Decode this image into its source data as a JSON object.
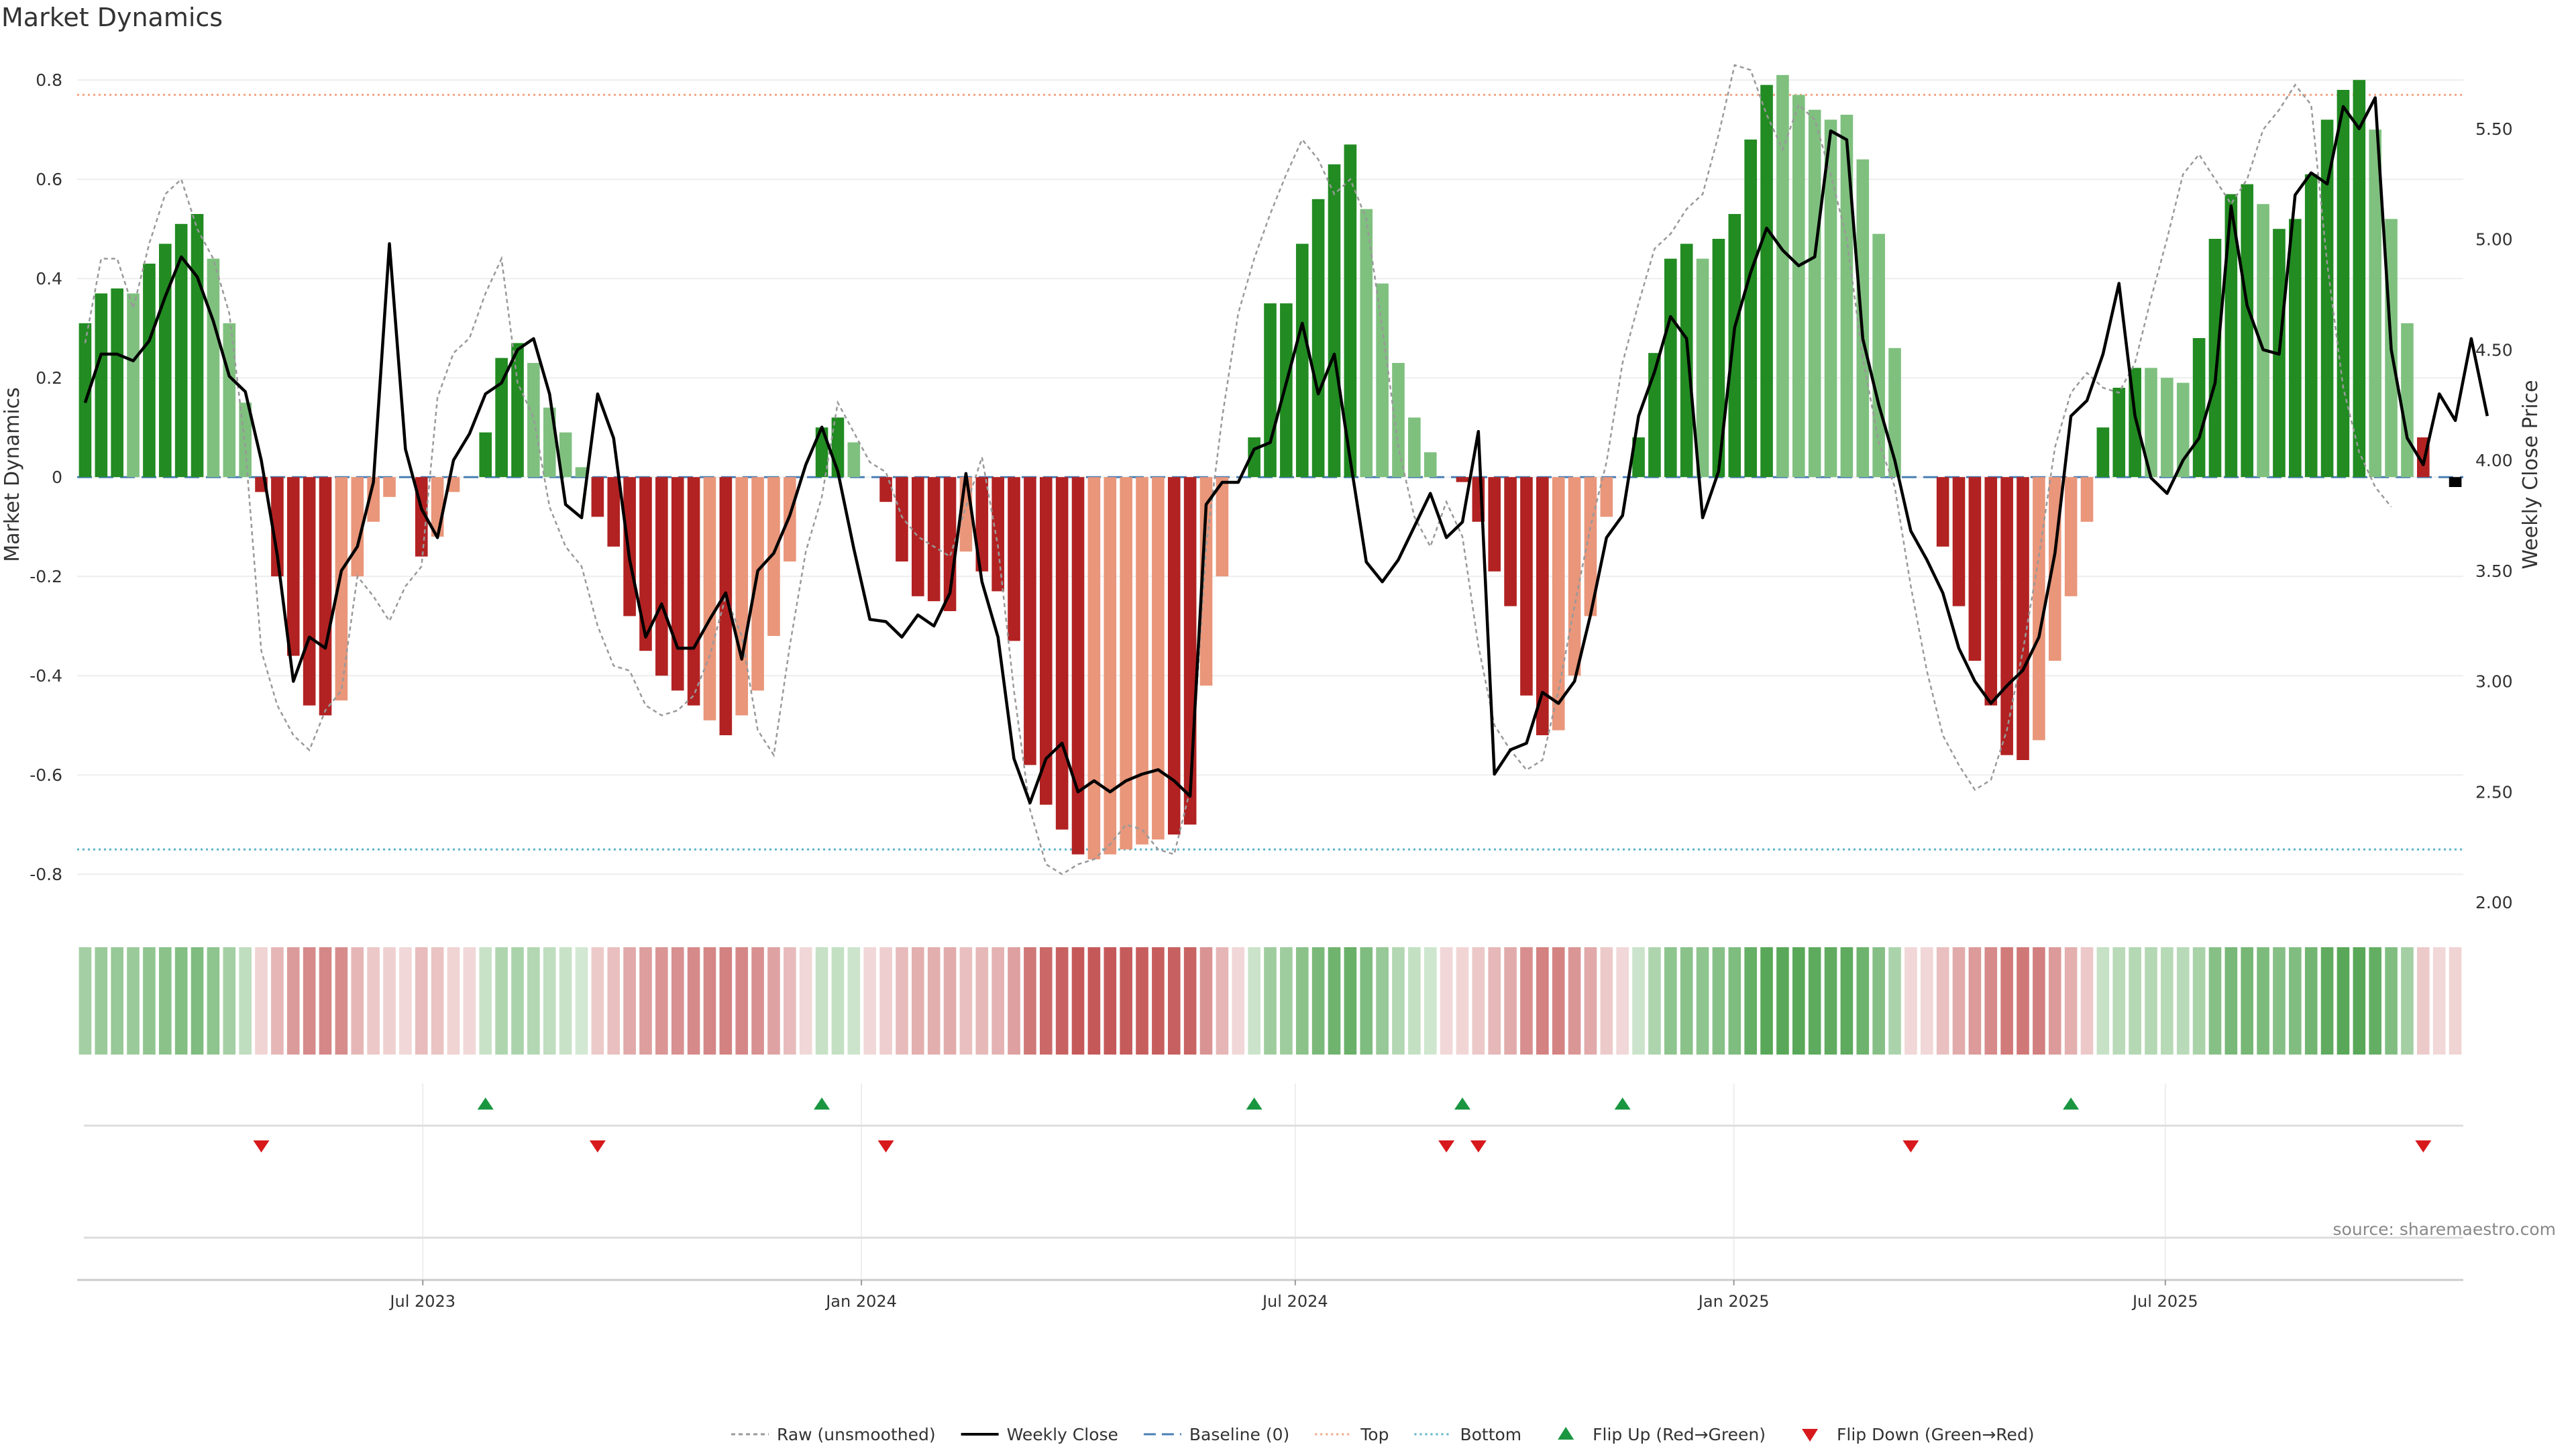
{
  "chart_data": {
    "type": "bar",
    "title": "Market Dynamics",
    "source": "source: sharemaestro.com",
    "ylabel": "Market Dynamics",
    "ylabel_right": "Weekly Close Price",
    "ylim": [
      -0.87,
      0.88
    ],
    "ylim_right": [
      1.97,
      5.9
    ],
    "yticks": [
      0.8,
      0.6,
      0.4,
      0.2,
      0,
      -0.2,
      -0.4,
      -0.6,
      -0.8
    ],
    "ytick_labels": [
      "0.8",
      "0.6",
      "0.4",
      "0.2",
      "0",
      "-0.2",
      "-0.4",
      "-0.6",
      "-0.8"
    ],
    "yticks_right": [
      5.5,
      5.0,
      4.5,
      4.0,
      3.5,
      3.0,
      2.5,
      2.0
    ],
    "ytick_labels_right": [
      "5.50",
      "5.00",
      "4.50",
      "4.00",
      "3.50",
      "3.00",
      "2.50",
      "2.00"
    ],
    "x_start": "2023-02-06",
    "x_end": "2025-11-03",
    "xticks": [
      "2023-07-01",
      "2024-01-01",
      "2024-07-01",
      "2025-01-01",
      "2025-07-01"
    ],
    "xtick_labels": [
      "Jul 2023",
      "Jan 2024",
      "Jul 2024",
      "Jan 2025",
      "Jul 2025"
    ],
    "thresholds": {
      "top": 0.77,
      "bottom": -0.75,
      "baseline": 0
    },
    "grid": true,
    "legend_position": "bottom-center",
    "colors": {
      "strong_green": "#228b22",
      "weak_green": "#7fc07f",
      "strong_red": "#b22222",
      "weak_red": "#e9967a",
      "close_line": "#000000",
      "raw_line": "#999999",
      "baseline": "#4a7fb5",
      "top": "#f4a582",
      "bottom": "#5ab4c8",
      "flip_up": "#1a9641",
      "flip_down": "#d7191c"
    },
    "series": [
      {
        "name": "Market Dynamics",
        "values": [
          0.31,
          0.37,
          0.38,
          0.37,
          0.43,
          0.47,
          0.51,
          0.53,
          0.44,
          0.31,
          0.15,
          -0.03,
          -0.2,
          -0.36,
          -0.46,
          -0.48,
          -0.45,
          -0.2,
          -0.09,
          -0.04,
          0,
          -0.16,
          -0.12,
          -0.03,
          0,
          0.09,
          0.24,
          0.27,
          0.23,
          0.14,
          0.09,
          0.02,
          -0.08,
          -0.14,
          -0.28,
          -0.35,
          -0.4,
          -0.43,
          -0.46,
          -0.49,
          -0.52,
          -0.48,
          -0.43,
          -0.32,
          -0.17,
          0,
          0.1,
          0.12,
          0.07,
          0,
          -0.05,
          -0.17,
          -0.24,
          -0.25,
          -0.27,
          -0.15,
          -0.19,
          -0.23,
          -0.33,
          -0.58,
          -0.66,
          -0.71,
          -0.76,
          -0.77,
          -0.76,
          -0.75,
          -0.74,
          -0.73,
          -0.72,
          -0.7,
          -0.42,
          -0.2,
          0,
          0.08,
          0.35,
          0.35,
          0.47,
          0.56,
          0.63,
          0.67,
          0.54,
          0.39,
          0.23,
          0.12,
          0.05,
          0,
          -0.01,
          -0.09,
          -0.19,
          -0.26,
          -0.44,
          -0.52,
          -0.51,
          -0.4,
          -0.28,
          -0.08,
          0,
          0.08,
          0.25,
          0.44,
          0.47,
          0.44,
          0.48,
          0.53,
          0.68,
          0.79,
          0.81,
          0.77,
          0.74,
          0.72,
          0.73,
          0.64,
          0.49,
          0.26,
          0,
          0,
          -0.14,
          -0.26,
          -0.37,
          -0.46,
          -0.56,
          -0.57,
          -0.53,
          -0.37,
          -0.24,
          -0.09,
          0.1,
          0.18,
          0.22,
          0.22,
          0.2,
          0.19,
          0.28,
          0.48,
          0.57,
          0.59,
          0.55,
          0.5,
          0.52,
          0.61,
          0.72,
          0.78,
          0.8,
          0.7,
          0.52,
          0.31,
          0.08,
          0,
          -0.02
        ],
        "kinds": [
          "G",
          "G",
          "G",
          "W",
          "G",
          "G",
          "G",
          "G",
          "W",
          "W",
          "W",
          "R",
          "R",
          "R",
          "R",
          "R",
          "L",
          "L",
          "L",
          "L",
          "N",
          "R",
          "L",
          "L",
          "N",
          "G",
          "G",
          "G",
          "W",
          "W",
          "W",
          "W",
          "R",
          "R",
          "R",
          "R",
          "R",
          "R",
          "R",
          "L",
          "R",
          "L",
          "L",
          "L",
          "L",
          "N",
          "G",
          "G",
          "W",
          "N",
          "R",
          "R",
          "R",
          "R",
          "R",
          "L",
          "R",
          "R",
          "R",
          "R",
          "R",
          "R",
          "R",
          "L",
          "L",
          "L",
          "L",
          "L",
          "R",
          "R",
          "L",
          "L",
          "N",
          "G",
          "G",
          "G",
          "G",
          "G",
          "G",
          "G",
          "W",
          "W",
          "W",
          "W",
          "W",
          "N",
          "R",
          "R",
          "R",
          "R",
          "R",
          "R",
          "L",
          "L",
          "L",
          "L",
          "N",
          "G",
          "G",
          "G",
          "G",
          "W",
          "G",
          "G",
          "G",
          "G",
          "W",
          "W",
          "W",
          "W",
          "W",
          "W",
          "W",
          "W",
          "N",
          "N",
          "R",
          "R",
          "R",
          "R",
          "R",
          "R",
          "L",
          "L",
          "L",
          "L",
          "G",
          "G",
          "G",
          "W",
          "W",
          "W",
          "G",
          "G",
          "G",
          "G",
          "W",
          "G",
          "G",
          "G",
          "G",
          "G",
          "G",
          "W",
          "W",
          "W",
          "N",
          "R"
        ]
      },
      {
        "name": "Raw (unsmoothed)",
        "values": [
          0.27,
          0.44,
          0.44,
          0.34,
          0.47,
          0.57,
          0.6,
          0.5,
          0.44,
          0.33,
          0.06,
          -0.35,
          -0.46,
          -0.52,
          -0.55,
          -0.47,
          -0.43,
          -0.2,
          -0.24,
          -0.29,
          -0.22,
          -0.18,
          0.16,
          0.25,
          0.28,
          0.37,
          0.44,
          0.19,
          0.12,
          -0.06,
          -0.14,
          -0.18,
          -0.3,
          -0.38,
          -0.39,
          -0.46,
          -0.48,
          -0.47,
          -0.44,
          -0.36,
          -0.24,
          -0.32,
          -0.51,
          -0.56,
          -0.34,
          -0.15,
          -0.04,
          0.15,
          0.09,
          0.03,
          0.01,
          -0.08,
          -0.12,
          -0.14,
          -0.16,
          -0.06,
          0.04,
          -0.14,
          -0.43,
          -0.67,
          -0.78,
          -0.8,
          -0.78,
          -0.77,
          -0.74,
          -0.7,
          -0.71,
          -0.75,
          -0.76,
          -0.63,
          -0.14,
          0.12,
          0.33,
          0.44,
          0.53,
          0.61,
          0.68,
          0.64,
          0.57,
          0.6,
          0.52,
          0.3,
          0.06,
          -0.08,
          -0.14,
          -0.05,
          -0.12,
          -0.34,
          -0.5,
          -0.55,
          -0.59,
          -0.57,
          -0.43,
          -0.26,
          -0.1,
          0.03,
          0.23,
          0.35,
          0.46,
          0.49,
          0.54,
          0.57,
          0.69,
          0.83,
          0.82,
          0.73,
          0.66,
          0.75,
          0.72,
          0.61,
          0.48,
          0.24,
          0.07,
          -0.02,
          -0.22,
          -0.39,
          -0.52,
          -0.58,
          -0.63,
          -0.61,
          -0.51,
          -0.35,
          -0.16,
          0.06,
          0.17,
          0.21,
          0.18,
          0.17,
          0.23,
          0.36,
          0.48,
          0.61,
          0.65,
          0.6,
          0.55,
          0.6,
          0.7,
          0.74,
          0.79,
          0.75,
          0.43,
          0.18,
          0.05,
          -0.02,
          -0.06
        ],
        "line_style": "dotted"
      },
      {
        "name": "Weekly Close",
        "values": [
          4.26,
          4.48,
          4.48,
          4.45,
          4.54,
          4.74,
          4.92,
          4.83,
          4.63,
          4.38,
          4.31,
          4.0,
          3.57,
          3.0,
          3.2,
          3.15,
          3.5,
          3.61,
          3.9,
          4.98,
          4.05,
          3.78,
          3.65,
          4.0,
          4.12,
          4.3,
          4.35,
          4.5,
          4.55,
          4.3,
          3.8,
          3.74,
          4.3,
          4.1,
          3.55,
          3.2,
          3.35,
          3.15,
          3.15,
          3.28,
          3.4,
          3.1,
          3.5,
          3.58,
          3.75,
          3.98,
          4.15,
          3.95,
          3.6,
          3.28,
          3.27,
          3.2,
          3.3,
          3.25,
          3.4,
          3.94,
          3.45,
          3.2,
          2.65,
          2.45,
          2.65,
          2.72,
          2.5,
          2.55,
          2.5,
          2.55,
          2.58,
          2.6,
          2.55,
          2.48,
          3.8,
          3.9,
          3.9,
          4.05,
          4.08,
          4.35,
          4.62,
          4.3,
          4.48,
          4.0,
          3.54,
          3.45,
          3.55,
          3.7,
          3.85,
          3.65,
          3.72,
          4.13,
          2.58,
          2.69,
          2.72,
          2.95,
          2.9,
          3.0,
          3.3,
          3.65,
          3.75,
          4.2,
          4.4,
          4.65,
          4.55,
          3.74,
          3.95,
          4.6,
          4.85,
          5.05,
          4.95,
          4.88,
          4.92,
          5.49,
          5.45,
          4.55,
          4.25,
          4.0,
          3.68,
          3.55,
          3.4,
          3.15,
          3.0,
          2.9,
          2.98,
          3.05,
          3.2,
          3.58,
          4.2,
          4.27,
          4.48,
          4.8,
          4.2,
          3.92,
          3.85,
          4.0,
          4.1,
          4.35,
          5.15,
          4.7,
          4.5,
          4.48,
          5.2,
          5.3,
          5.25,
          5.6,
          5.5,
          5.64,
          4.5,
          4.1,
          3.98,
          4.3,
          4.18,
          4.55,
          4.2
        ],
        "line_style": "solid"
      }
    ],
    "flip_up_indices": [
      25,
      46,
      73,
      86,
      96,
      124
    ],
    "flip_down_indices": [
      11,
      32,
      50,
      85,
      87,
      114,
      146
    ],
    "legend": [
      {
        "key": "raw",
        "label": "Raw (unsmoothed)"
      },
      {
        "key": "close",
        "label": "Weekly Close"
      },
      {
        "key": "baseline",
        "label": "Baseline (0)"
      },
      {
        "key": "top",
        "label": "Top"
      },
      {
        "key": "bottom",
        "label": "Bottom"
      },
      {
        "key": "flip_up",
        "label": "Flip Up (Red→Green)"
      },
      {
        "key": "flip_down",
        "label": "Flip Down (Green→Red)"
      }
    ]
  }
}
